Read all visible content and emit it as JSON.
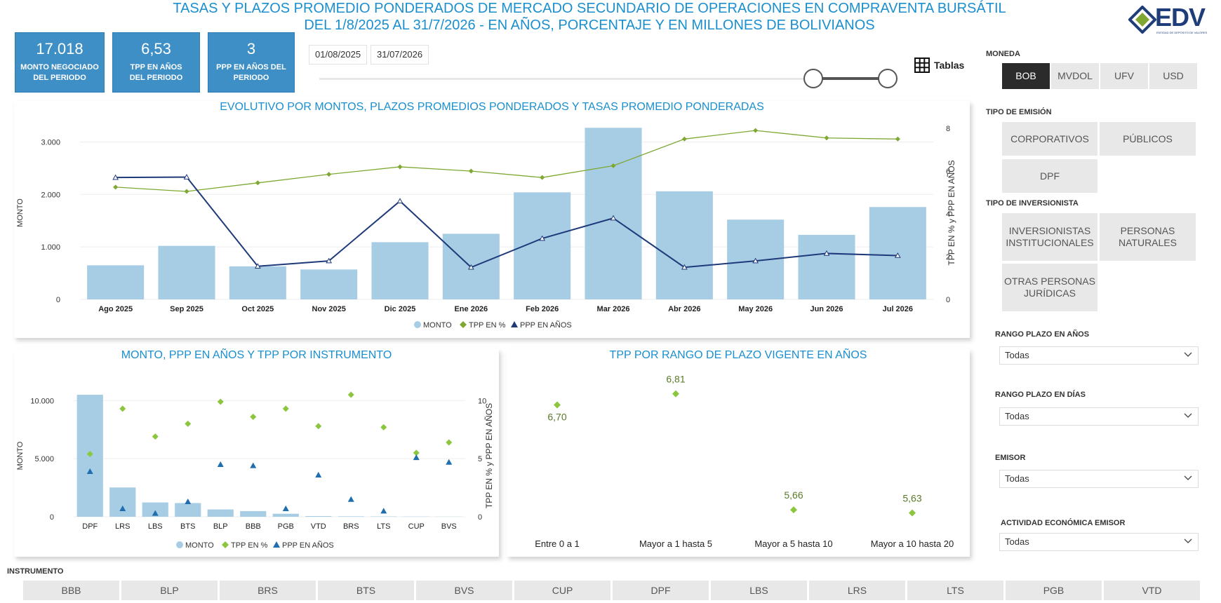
{
  "header": {
    "title_line1": "TASAS Y PLAZOS PROMEDIO PONDERADOS DE MERCADO SECUNDARIO DE OPERACIONES EN COMPRAVENTA BURSÁTIL",
    "title_line2": "DEL 1/8/2025 AL 31/7/2026 - EN AÑOS, PORCENTAJE Y EN MILLONES DE BOLIVIANOS",
    "logo_text": "EDV",
    "logo_sub": "ENTIDAD DE DEPÓSITO DE VALORES"
  },
  "kpis": [
    {
      "value": "17.018",
      "label1": "MONTO NEGOCIADO",
      "label2": "DEL PERIODO"
    },
    {
      "value": "6,53",
      "label1": "TPP EN AÑOS",
      "label2": "DEL PERIODO"
    },
    {
      "value": "3",
      "label1": "PPP EN AÑOS DEL",
      "label2": "PERIODO"
    }
  ],
  "date_filter": {
    "start": "01/08/2025",
    "end": "31/07/2026"
  },
  "tablas_label": "Tablas",
  "sidebar": {
    "moneda_label": "MONEDA",
    "moneda": [
      "BOB",
      "MVDOL",
      "UFV",
      "USD"
    ],
    "moneda_selected": "BOB",
    "tipo_emision_label": "TIPO DE EMISIÓN",
    "tipo_emision": [
      "CORPORATIVOS",
      "PÚBLICOS",
      "DPF"
    ],
    "tipo_inversionista_label": "TIPO DE INVERSIONISTA",
    "tipo_inversionista": [
      {
        "l1": "INVERSIONISTAS",
        "l2": "INSTITUCIONALES"
      },
      {
        "l1": "PERSONAS",
        "l2": "NATURALES"
      },
      {
        "l1": "OTRAS PERSONAS",
        "l2": "JURÍDICAS"
      }
    ],
    "dropdowns": [
      {
        "label": "RANGO PLAZO EN AÑOS",
        "value": "Todas"
      },
      {
        "label": "RANGO PLAZO EN DÍAS",
        "value": "Todas"
      },
      {
        "label": "EMISOR",
        "value": "Todas"
      },
      {
        "label": "ACTIVIDAD ECONÓMICA EMISOR",
        "value": "Todas"
      }
    ]
  },
  "instrumento": {
    "label": "INSTRUMENTO",
    "items": [
      "BBB",
      "BLP",
      "BRS",
      "BTS",
      "BVS",
      "CUP",
      "DPF",
      "LBS",
      "LRS",
      "LTS",
      "PGB",
      "VTD"
    ]
  },
  "colors": {
    "bar": "#a7cde4",
    "tpp": "#7ea832",
    "ppp": "#1f3a7a",
    "ppp_marker": "#1f6fb0",
    "accent": "#1a8fd0"
  },
  "chart_data": [
    {
      "type": "bar",
      "title": "EVOLUTIVO POR MONTOS, PLAZOS PROMEDIOS PONDERADOS Y TASAS PROMEDIO PONDERADAS",
      "ylabel": "MONTO",
      "y2label": "TPP EN % y PPP EN AÑOS",
      "ylim": [
        0,
        3300
      ],
      "y2lim": [
        0,
        8.1
      ],
      "yticks": [
        "0",
        "1.000",
        "2.000",
        "3.000"
      ],
      "y2ticks": [
        "0",
        "2",
        "4",
        "6",
        "8"
      ],
      "categories": [
        "Ago 2025",
        "Sep 2025",
        "Oct 2025",
        "Nov 2025",
        "Dic 2025",
        "Ene 2026",
        "Feb 2026",
        "Mar 2026",
        "Abr 2026",
        "May 2026",
        "Jun 2026",
        "Jul 2026"
      ],
      "series": [
        {
          "name": "MONTO",
          "type": "bar",
          "axis": "left",
          "values": [
            650,
            1020,
            630,
            570,
            1090,
            1250,
            2040,
            3270,
            2060,
            1520,
            1230,
            1760
          ]
        },
        {
          "name": "TPP EN %",
          "type": "line",
          "axis": "right",
          "values": [
            5.25,
            5.05,
            5.45,
            5.85,
            6.2,
            6.0,
            5.7,
            6.25,
            7.5,
            7.9,
            7.55,
            7.5
          ]
        },
        {
          "name": "PPP EN AÑOS",
          "type": "line",
          "axis": "right",
          "values": [
            5.7,
            5.72,
            1.55,
            1.8,
            4.6,
            1.5,
            2.85,
            3.8,
            1.5,
            1.8,
            2.15,
            2.05
          ]
        }
      ],
      "legend": [
        "MONTO",
        "TPP EN %",
        "PPP EN AÑOS"
      ],
      "legend_position": "bottom"
    },
    {
      "type": "bar",
      "title": "MONTO, PPP EN AÑOS Y TPP POR INSTRUMENTO",
      "ylabel": "MONTO",
      "y2label": "TPP EN % y PPP EN AÑOS",
      "ylim": [
        0,
        10500
      ],
      "y2lim": [
        0,
        10.5
      ],
      "yticks": [
        "0",
        "5.000",
        "10.000"
      ],
      "y2ticks": [
        "0",
        "5",
        "10"
      ],
      "categories": [
        "DPF",
        "LRS",
        "LBS",
        "BTS",
        "BLP",
        "BBB",
        "PGB",
        "VTD",
        "BRS",
        "LTS",
        "CUP",
        "BVS"
      ],
      "series": [
        {
          "name": "MONTO",
          "type": "bar",
          "axis": "left",
          "values": [
            10500,
            2520,
            1230,
            1180,
            630,
            490,
            260,
            60,
            40,
            30,
            20,
            10
          ]
        },
        {
          "name": "TPP EN %",
          "type": "scatter",
          "axis": "right",
          "values": [
            5.4,
            9.3,
            6.9,
            8.0,
            9.9,
            8.6,
            9.3,
            7.8,
            10.5,
            7.7,
            5.5,
            6.4
          ]
        },
        {
          "name": "PPP EN AÑOS",
          "type": "scatter",
          "axis": "right",
          "values": [
            3.9,
            0.7,
            0.3,
            1.3,
            4.5,
            4.4,
            0.7,
            3.6,
            1.5,
            0.5,
            5.1,
            4.7
          ]
        }
      ],
      "legend": [
        "MONTO",
        "TPP EN %",
        "PPP EN AÑOS"
      ],
      "legend_position": "bottom"
    },
    {
      "type": "scatter",
      "title": "TPP POR RANGO DE PLAZO VIGENTE EN AÑOS",
      "categories": [
        "Entre 0 a 1",
        "Mayor a 1 hasta 5",
        "Mayor a 5 hasta 10",
        "Mayor a 10 hasta 20"
      ],
      "series": [
        {
          "name": "TPP",
          "values": [
            6.7,
            6.81,
            5.66,
            5.63
          ]
        }
      ],
      "labels": [
        "6,70",
        "6,81",
        "5,66",
        "5,63"
      ],
      "ylim": [
        5.55,
        6.87
      ]
    }
  ]
}
